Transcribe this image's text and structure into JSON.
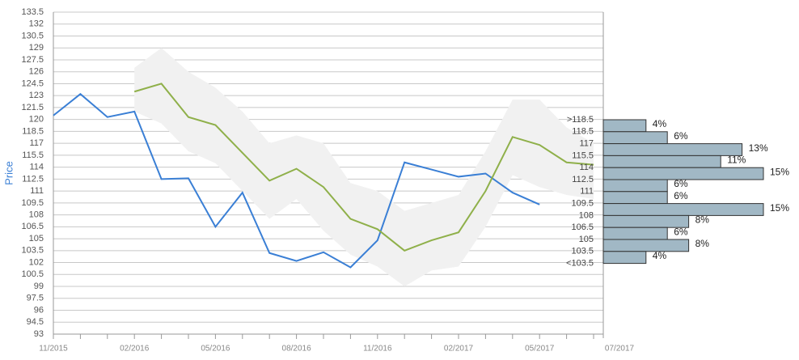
{
  "chart_data": [
    {
      "type": "line",
      "y_label": "Price",
      "categories": [
        "11/2015",
        null,
        null,
        "02/2016",
        null,
        null,
        "05/2016",
        null,
        null,
        "08/2016",
        null,
        null,
        "11/2016",
        null,
        null,
        "02/2017",
        null,
        null,
        "05/2017",
        null,
        "07/2017"
      ],
      "ylim": [
        93,
        133.5
      ],
      "yticks": [
        93,
        94.5,
        96,
        97.5,
        99,
        100.5,
        102,
        103.5,
        105,
        106.5,
        108,
        109.5,
        111,
        112.5,
        114,
        115.5,
        117,
        118.5,
        120,
        121.5,
        123,
        124.5,
        126,
        127.5,
        129,
        130.5,
        132,
        133.5
      ],
      "grid": true,
      "band_color": "#f1f1f1",
      "band_low": [
        null,
        null,
        null,
        121,
        119.5,
        116,
        114.5,
        111,
        107.5,
        110,
        106,
        103,
        101.5,
        99,
        101,
        101.5,
        106.5,
        113,
        111.5,
        110.5,
        110
      ],
      "band_high": [
        null,
        null,
        null,
        126.5,
        129,
        126,
        124,
        121,
        117,
        118,
        117,
        112,
        111,
        108.5,
        109.5,
        110.5,
        116,
        122.5,
        122.5,
        119,
        117
      ],
      "series": [
        {
          "color": "#3a7fd5",
          "values": [
            120.5,
            123.2,
            120.3,
            121,
            112.5,
            112.6,
            106.5,
            110.8,
            103.2,
            102.2,
            103.3,
            101.4,
            104.8,
            114.6,
            113.7,
            112.8,
            113.2,
            110.8,
            109.3,
            null,
            null
          ]
        },
        {
          "color": "#8fb04a",
          "values": [
            null,
            null,
            null,
            123.5,
            124.5,
            120.3,
            119.3,
            115.8,
            112.3,
            113.8,
            111.5,
            107.5,
            106.2,
            103.5,
            104.8,
            105.8,
            111,
            117.8,
            116.8,
            114.6,
            114.3
          ]
        }
      ]
    },
    {
      "type": "histogram",
      "color": "#a1b8c5",
      "bins": [
        ">118.5",
        "118.5",
        "117",
        "115.5",
        "114",
        "112.5",
        "111",
        "109.5",
        "108",
        "106.5",
        "105",
        "103.5",
        "<103.5"
      ],
      "values": [
        4,
        6,
        13,
        11,
        15,
        6,
        6,
        15,
        8,
        6,
        8,
        4
      ],
      "value_labels": [
        "4%",
        "6%",
        "13%",
        "11%",
        "15%",
        "6%",
        "6%",
        "15%",
        "8%",
        "6%",
        "8%",
        "4%"
      ]
    }
  ]
}
